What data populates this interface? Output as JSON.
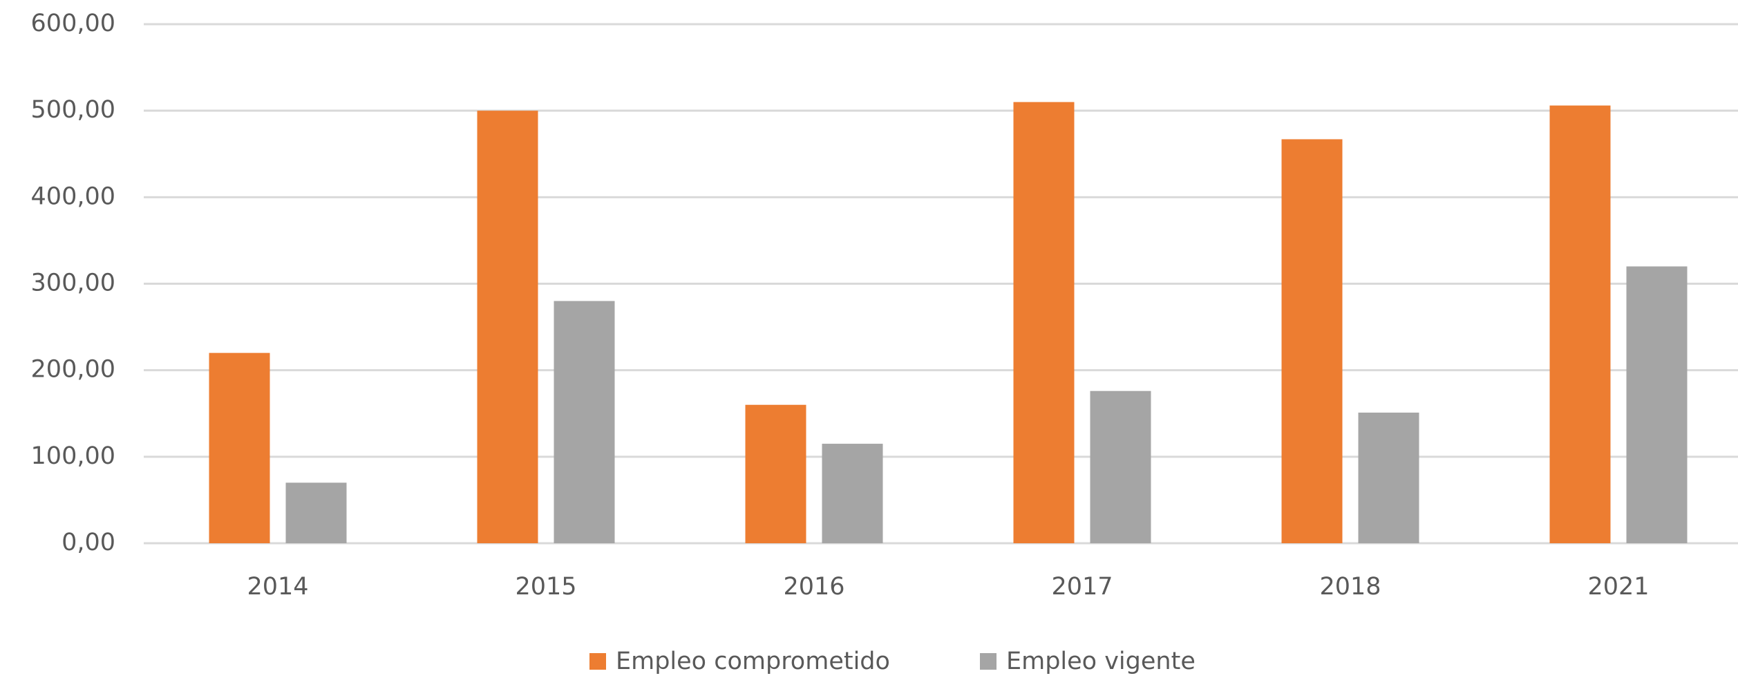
{
  "chart_data": {
    "type": "bar",
    "categories": [
      "2014",
      "2015",
      "2016",
      "2017",
      "2018",
      "2021"
    ],
    "series": [
      {
        "name": "Empleo comprometido",
        "color": "#ed7d31",
        "values": [
          220,
          500,
          160,
          510,
          467,
          506
        ]
      },
      {
        "name": "Empleo vigente",
        "color": "#a5a5a5",
        "values": [
          70,
          280,
          115,
          176,
          151,
          320
        ]
      }
    ],
    "ylim": [
      0,
      600
    ],
    "yticks": [
      {
        "value": 0,
        "label": "0,00"
      },
      {
        "value": 100,
        "label": "100,00"
      },
      {
        "value": 200,
        "label": "200,00"
      },
      {
        "value": 300,
        "label": "300,00"
      },
      {
        "value": 400,
        "label": "400,00"
      },
      {
        "value": 500,
        "label": "500,00"
      },
      {
        "value": 600,
        "label": "600,00"
      }
    ],
    "grid": true,
    "legend": "bottom"
  }
}
